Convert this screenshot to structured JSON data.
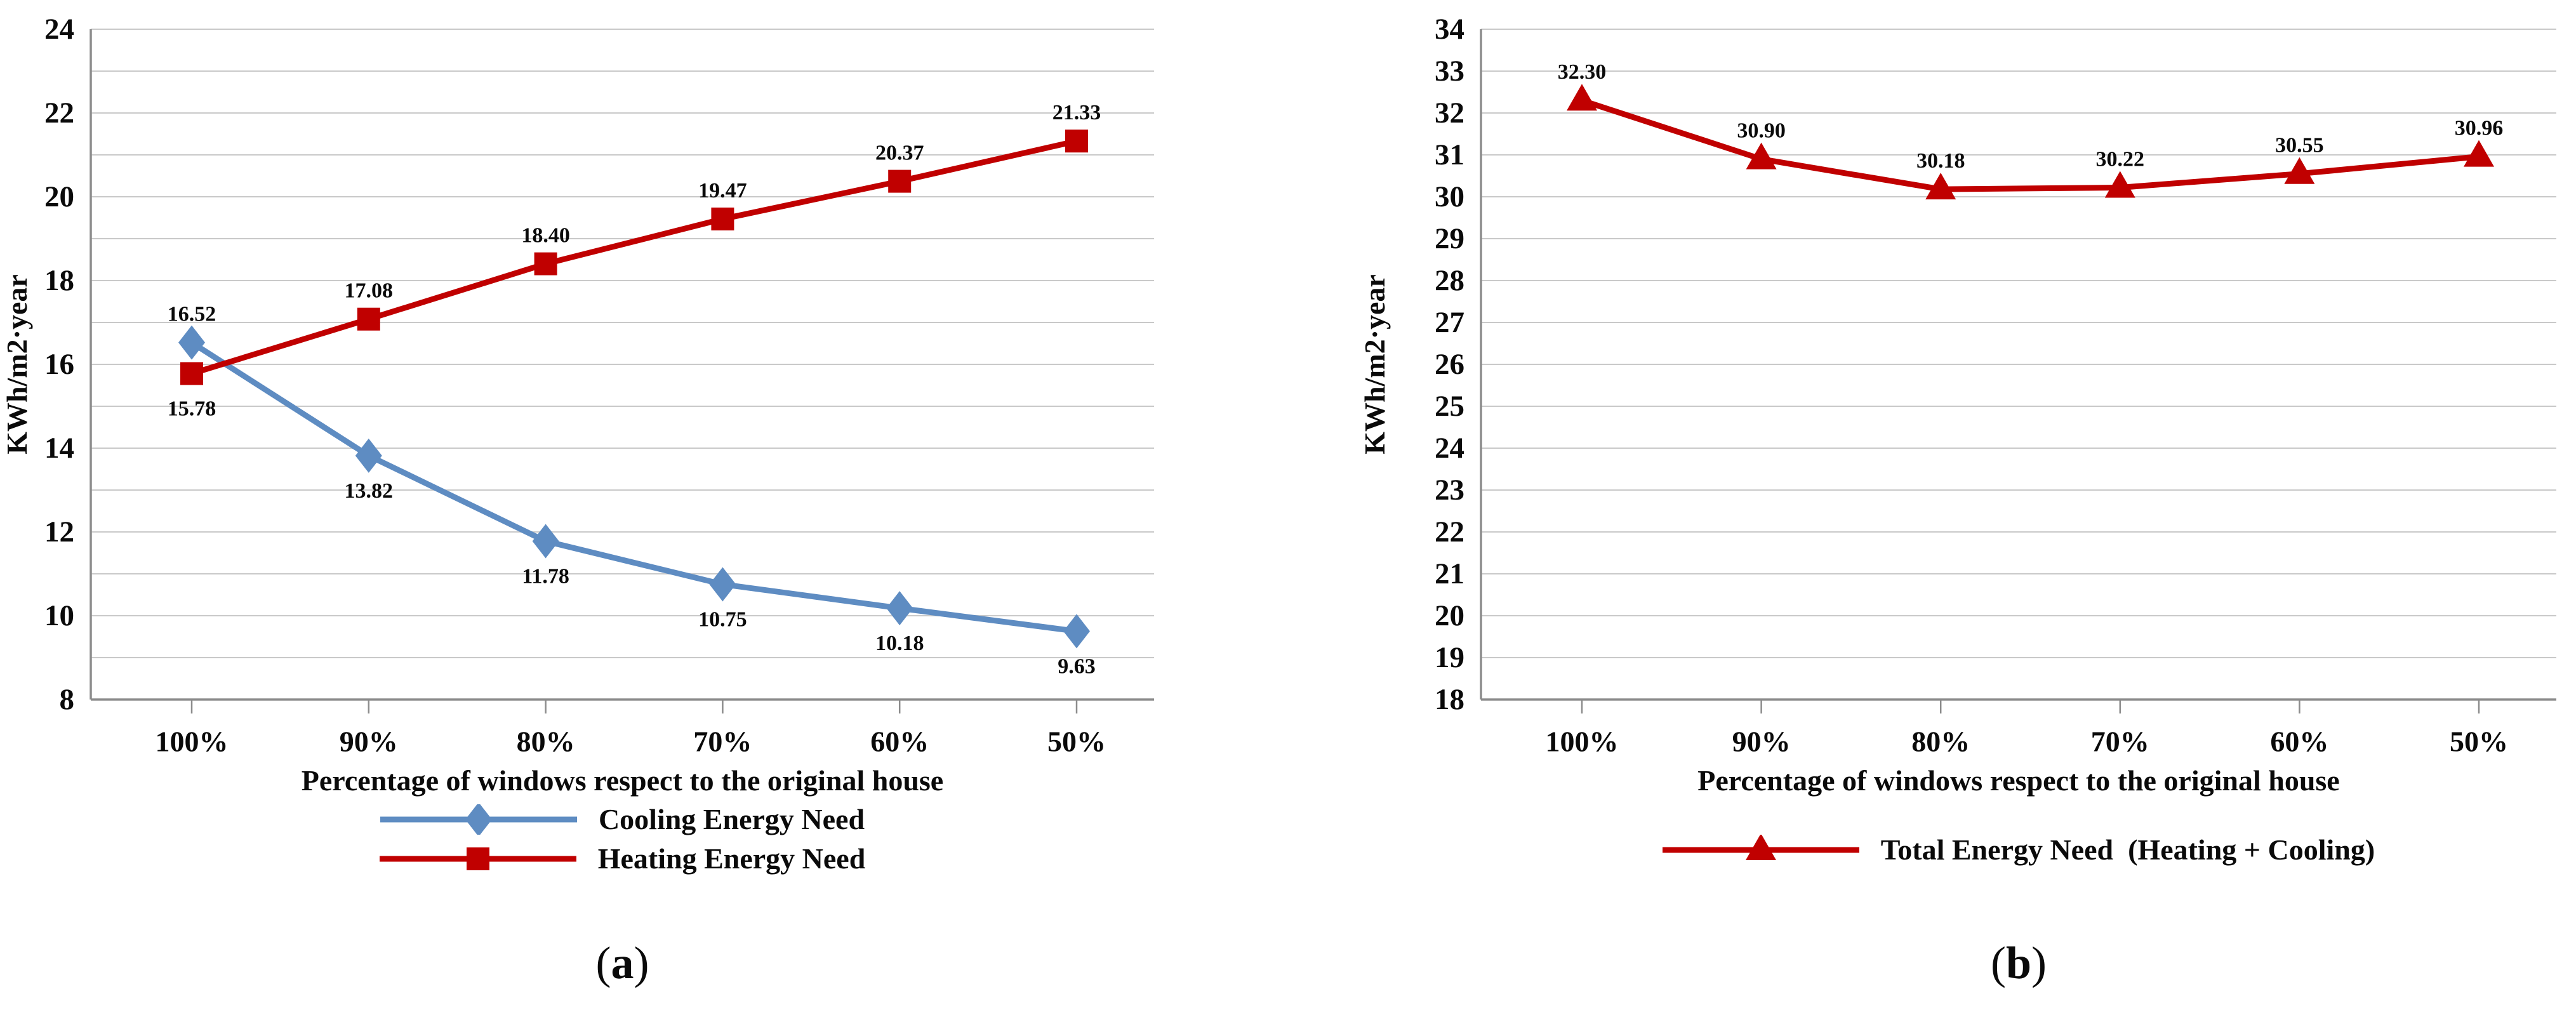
{
  "style": {
    "background_color": "#ffffff",
    "grid_color": "#c9c9c9",
    "axis_color": "#8c8c8c",
    "text_color": "#0a0a0a",
    "cooling_series_color": "#5e8cc2",
    "heating_series_color": "#c00000",
    "total_series_color": "#c00000"
  },
  "chart_data": [
    {
      "type": "line",
      "panel": "a",
      "caption": {
        "open": "(",
        "label": "a",
        "close": ")"
      },
      "xlabel": "Percentage of windows respect to the original house",
      "ylabel": "KWh/m2·year",
      "categories": [
        "100%",
        "90%",
        "80%",
        "70%",
        "60%",
        "50%"
      ],
      "ylim": [
        8,
        24
      ],
      "ytick_label_step": 2,
      "grid_step": 1,
      "grid": true,
      "legend_position": "bottom",
      "series": [
        {
          "name": "Cooling Energy Need",
          "color": "#5e8cc2",
          "marker": "diamond",
          "values": [
            16.52,
            13.82,
            11.78,
            10.75,
            10.18,
            9.63
          ],
          "data_labels": [
            "16.52",
            "13.82",
            "11.78",
            "10.75",
            "10.18",
            "9.63"
          ],
          "label_positions": [
            "above",
            "below",
            "below",
            "below",
            "below",
            "below"
          ]
        },
        {
          "name": "Heating Energy Need",
          "color": "#c00000",
          "marker": "square",
          "values": [
            15.78,
            17.08,
            18.4,
            19.47,
            20.37,
            21.33
          ],
          "data_labels": [
            "15.78",
            "17.08",
            "18.40",
            "19.47",
            "20.37",
            "21.33"
          ],
          "label_positions": [
            "below",
            "above",
            "above",
            "above",
            "above",
            "above"
          ]
        }
      ]
    },
    {
      "type": "line",
      "panel": "b",
      "caption": {
        "open": "(",
        "label": "b",
        "close": ")"
      },
      "xlabel": "Percentage of windows respect to the original house",
      "ylabel": "KWh/m2·year",
      "categories": [
        "100%",
        "90%",
        "80%",
        "70%",
        "60%",
        "50%"
      ],
      "ylim": [
        18,
        34
      ],
      "ytick_label_step": 1,
      "grid_step": 1,
      "grid": true,
      "legend_position": "bottom",
      "series": [
        {
          "name": "Total Energy Need  (Heating + Cooling)",
          "color": "#c00000",
          "marker": "triangle",
          "values": [
            32.3,
            30.9,
            30.18,
            30.22,
            30.55,
            30.96
          ],
          "data_labels": [
            "32.30",
            "30.90",
            "30.18",
            "30.22",
            "30.55",
            "30.96"
          ],
          "label_positions": [
            "above",
            "above",
            "above",
            "above",
            "above",
            "above"
          ]
        }
      ]
    }
  ]
}
